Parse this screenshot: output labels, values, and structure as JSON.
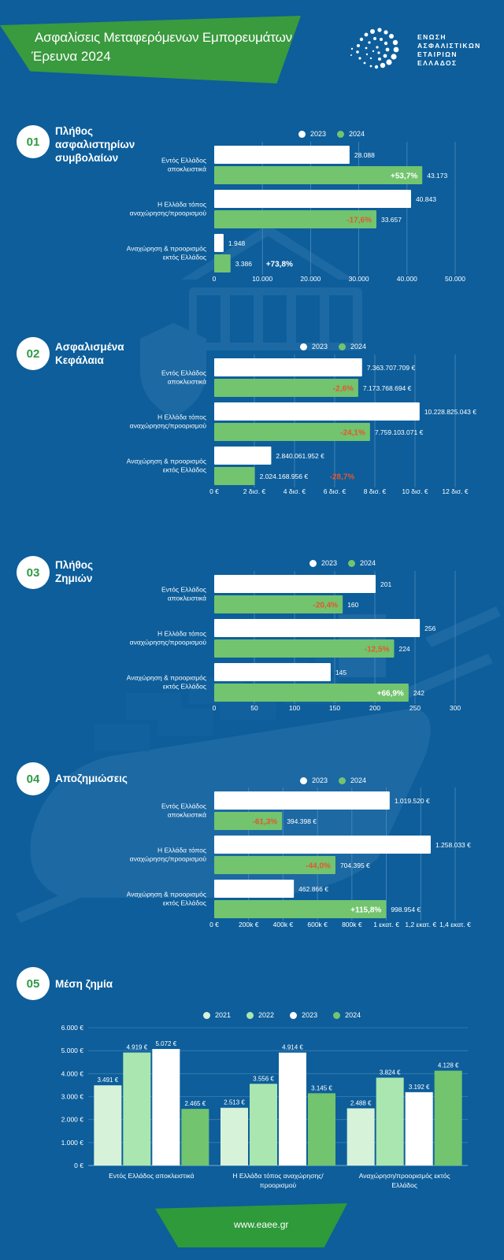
{
  "header": {
    "title_line1": "Ασφαλίσεις Μεταφερόμενων Εμπορευμάτων",
    "title_line2": "Έρευνα 2024",
    "logo_text": [
      "ΕΝΩΣΗ",
      "ΑΣΦΑΛΙΣΤΙΚΩΝ",
      "ΕΤΑΙΡΙΩΝ",
      "ΕΛΛΑΔΟΣ"
    ]
  },
  "colors": {
    "background": "#0d5e9b",
    "bar2023": "#ffffff",
    "bar2024": "#72c46e",
    "negative": "#e4572e",
    "accent": "#2e9a47",
    "c2021": "#d6f2d9",
    "c2022": "#aae6b0"
  },
  "sections": [
    {
      "num": "01",
      "title": "Πλήθος\nασφαλιστηρίων\nσυμβολαίων"
    },
    {
      "num": "02",
      "title": "Ασφαλισμένα\nΚεφάλαια"
    },
    {
      "num": "03",
      "title": "Πλήθος\nΖημιών"
    },
    {
      "num": "04",
      "title": "Αποζημιώσεις"
    },
    {
      "num": "05",
      "title": "Μέση ζημία"
    }
  ],
  "footer": {
    "url": "www.eaee.gr"
  },
  "chart_data": [
    {
      "type": "bar",
      "orientation": "horizontal",
      "categories": [
        [
          "Εντός Ελλάδος",
          "αποκλειστικά"
        ],
        [
          "Η Ελλάδα τόπος",
          "αναχώρησης/προορισμού"
        ],
        [
          "Αναχώρηση & προορισμός",
          "εκτός Ελλάδος"
        ]
      ],
      "series": [
        {
          "name": "2023",
          "values": [
            28088,
            40843,
            1948
          ],
          "labels": [
            "28.088",
            "40.843",
            "1.948"
          ]
        },
        {
          "name": "2024",
          "values": [
            43173,
            33657,
            3386
          ],
          "labels": [
            "43.173",
            "33.657",
            "3.386"
          ]
        }
      ],
      "changes": [
        {
          "text": "+53,7%",
          "positive": true
        },
        {
          "text": "-17,6%",
          "positive": false
        },
        {
          "text": "+73,8%",
          "positive": true
        }
      ],
      "xlim": [
        0,
        50000
      ],
      "ticks": [
        0,
        10000,
        20000,
        30000,
        40000,
        50000
      ],
      "tick_labels": [
        "0",
        "10.000",
        "20.000",
        "30.000",
        "40.000",
        "50.000"
      ],
      "legend": "top"
    },
    {
      "type": "bar",
      "orientation": "horizontal",
      "categories": [
        [
          "Εντός Ελλάδος",
          "αποκλειστικά"
        ],
        [
          "Η Ελλάδα τόπος",
          "αναχώρησης/προορισμού"
        ],
        [
          "Αναχώρηση & προορισμός",
          "εκτός Ελλάδος"
        ]
      ],
      "series": [
        {
          "name": "2023",
          "values": [
            7363707709,
            10228825043,
            2840061952
          ],
          "labels": [
            "7.363.707.709 €",
            "10.228.825.043 €",
            "2.840.061.952 €"
          ]
        },
        {
          "name": "2024",
          "values": [
            7173768694,
            7759103071,
            2024168956
          ],
          "labels": [
            "7.173.768.694 €",
            "7.759.103.071 €",
            "2.024.168.956 €"
          ]
        }
      ],
      "changes": [
        {
          "text": "-2,6%",
          "positive": false
        },
        {
          "text": "-24,1%",
          "positive": false
        },
        {
          "text": "-28,7%",
          "positive": false
        }
      ],
      "xlim": [
        0,
        12000000000
      ],
      "ticks": [
        0,
        2000000000,
        4000000000,
        6000000000,
        8000000000,
        10000000000,
        12000000000
      ],
      "tick_labels": [
        "0 €",
        "2 δισ. €",
        "4 δισ. €",
        "6 δισ. €",
        "8 δισ. €",
        "10 δισ. €",
        "12 δισ. €"
      ],
      "legend": "top"
    },
    {
      "type": "bar",
      "orientation": "horizontal",
      "categories": [
        [
          "Εντός Ελλάδος",
          "αποκλειστικά"
        ],
        [
          "Η Ελλάδα τόπος",
          "αναχώρησης/προορισμού"
        ],
        [
          "Αναχώρηση & προορισμός",
          "εκτός Ελλάδος"
        ]
      ],
      "series": [
        {
          "name": "2023",
          "values": [
            201,
            256,
            145
          ],
          "labels": [
            "201",
            "256",
            "145"
          ]
        },
        {
          "name": "2024",
          "values": [
            160,
            224,
            242
          ],
          "labels": [
            "160",
            "224",
            "242"
          ]
        }
      ],
      "changes": [
        {
          "text": "-20,4%",
          "positive": false
        },
        {
          "text": "-12,5%",
          "positive": false
        },
        {
          "text": "+66,9%",
          "positive": true
        }
      ],
      "xlim": [
        0,
        300
      ],
      "ticks": [
        0,
        50,
        100,
        150,
        200,
        250,
        300
      ],
      "tick_labels": [
        "0",
        "50",
        "100",
        "150",
        "200",
        "250",
        "300"
      ],
      "legend": "top"
    },
    {
      "type": "bar",
      "orientation": "horizontal",
      "categories": [
        [
          "Εντός Ελλάδος",
          "αποκλειστικά"
        ],
        [
          "Η Ελλάδα τόπος",
          "αναχώρησης/προορισμού"
        ],
        [
          "Αναχώρηση & προορισμός",
          "εκτός Ελλάδος"
        ]
      ],
      "series": [
        {
          "name": "2023",
          "values": [
            1019520,
            1258033,
            462866
          ],
          "labels": [
            "1.019.520 €",
            "1.258.033 €",
            "462.866 €"
          ]
        },
        {
          "name": "2024",
          "values": [
            394398,
            704395,
            998954
          ],
          "labels": [
            "394.398 €",
            "704.395 €",
            "998.954 €"
          ]
        }
      ],
      "changes": [
        {
          "text": "-61,3%",
          "positive": false
        },
        {
          "text": "-44,0%",
          "positive": false
        },
        {
          "text": "+115,8%",
          "positive": true
        }
      ],
      "xlim": [
        0,
        1400000
      ],
      "ticks": [
        0,
        200000,
        400000,
        600000,
        800000,
        1000000,
        1200000,
        1400000
      ],
      "tick_labels": [
        "0 €",
        "200k €",
        "400k €",
        "600k €",
        "800k €",
        "1 εκατ. €",
        "1,2 εκατ. €",
        "1,4 εκατ. €"
      ],
      "legend": "top"
    },
    {
      "type": "bar",
      "orientation": "vertical",
      "categories": [
        [
          "Εντός Ελλάδος αποκλειστικά"
        ],
        [
          "Η Ελλάδα τόπος αναχώρησης/",
          "προορισμού"
        ],
        [
          "Αναχώρηση/προορισμός εκτός",
          "Ελλάδος"
        ]
      ],
      "series": [
        {
          "name": "2021",
          "values": [
            3491,
            2513,
            2488
          ],
          "labels": [
            "3.491 €",
            "2.513 €",
            "2.488 €"
          ]
        },
        {
          "name": "2022",
          "values": [
            4919,
            3556,
            3824
          ],
          "labels": [
            "4.919 €",
            "3.556 €",
            "3.824 €"
          ]
        },
        {
          "name": "2023",
          "values": [
            5072,
            4914,
            3192
          ],
          "labels": [
            "5.072 €",
            "4.914 €",
            "3.192 €"
          ]
        },
        {
          "name": "2024",
          "values": [
            2465,
            3145,
            4128
          ],
          "labels": [
            "2.465 €",
            "3.145 €",
            "4.128 €"
          ]
        }
      ],
      "ylim": [
        0,
        6000
      ],
      "ticks": [
        0,
        1000,
        2000,
        3000,
        4000,
        5000,
        6000
      ],
      "tick_labels": [
        "0 €",
        "1.000 €",
        "2.000 €",
        "3.000 €",
        "4.000 €",
        "5.000 €",
        "6.000 €"
      ],
      "legend": "top"
    }
  ]
}
